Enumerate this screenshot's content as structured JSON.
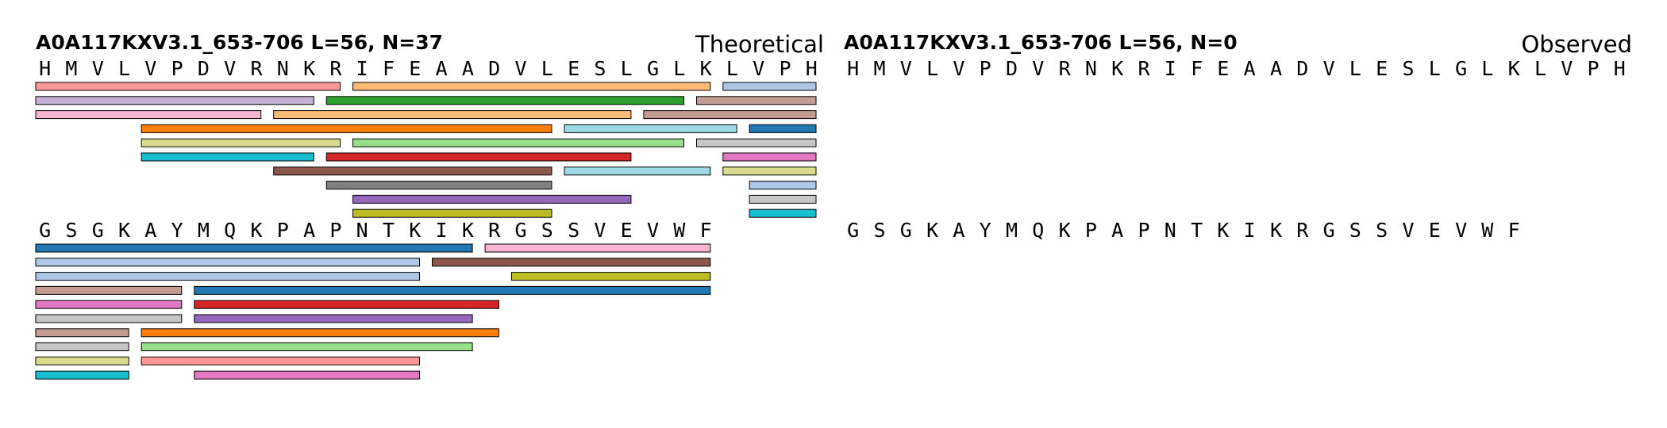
{
  "theme": {
    "palette": [
      "#ff9896",
      "#ffbb78",
      "#aec7e8",
      "#c5b0d5",
      "#2ca02c",
      "#c49c94",
      "#f7b6d2",
      "#ff7f0e",
      "#9edae5",
      "#1f77b4",
      "#dbdb8d",
      "#98df8a",
      "#c7c7c7",
      "#17becf",
      "#d62728",
      "#e377c2",
      "#8c564b",
      "#7f7f7f",
      "#9467bd",
      "#bcbd22"
    ]
  },
  "panels": [
    {
      "title": "A0A117KXV3.1_653-706  L=56, N=37",
      "mode_label": "Theoretical",
      "rows": [
        {
          "sequence": "HMVLVPDVRNKRIFEAADVLESLGLKLVPH",
          "start_residue": 1,
          "peptides": [
            {
              "start": 1,
              "end": 12,
              "track": 0,
              "color": "#ff9896"
            },
            {
              "start": 13,
              "end": 26,
              "track": 0,
              "color": "#ffbb78"
            },
            {
              "start": 27,
              "end": 30,
              "track": 0,
              "color": "#aec7e8"
            },
            {
              "start": 1,
              "end": 11,
              "track": 1,
              "color": "#c5b0d5"
            },
            {
              "start": 12,
              "end": 25,
              "track": 1,
              "color": "#2ca02c"
            },
            {
              "start": 26,
              "end": 30,
              "track": 1,
              "color": "#c49c94"
            },
            {
              "start": 1,
              "end": 9,
              "track": 2,
              "color": "#f7b6d2"
            },
            {
              "start": 10,
              "end": 23,
              "track": 2,
              "color": "#ffbb78"
            },
            {
              "start": 24,
              "end": 30,
              "track": 2,
              "color": "#c49c94"
            },
            {
              "start": 5,
              "end": 20,
              "track": 3,
              "color": "#ff7f0e"
            },
            {
              "start": 21,
              "end": 27,
              "track": 3,
              "color": "#9edae5"
            },
            {
              "start": 28,
              "end": 30,
              "track": 3,
              "color": "#1f77b4"
            },
            {
              "start": 5,
              "end": 12,
              "track": 4,
              "color": "#dbdb8d"
            },
            {
              "start": 13,
              "end": 25,
              "track": 4,
              "color": "#98df8a"
            },
            {
              "start": 26,
              "end": 30,
              "track": 4,
              "color": "#c7c7c7"
            },
            {
              "start": 5,
              "end": 11,
              "track": 5,
              "color": "#17becf"
            },
            {
              "start": 12,
              "end": 23,
              "track": 5,
              "color": "#d62728"
            },
            {
              "start": 27,
              "end": 30,
              "track": 5,
              "color": "#e377c2"
            },
            {
              "start": 10,
              "end": 20,
              "track": 6,
              "color": "#8c564b"
            },
            {
              "start": 21,
              "end": 26,
              "track": 6,
              "color": "#9edae5"
            },
            {
              "start": 27,
              "end": 30,
              "track": 6,
              "color": "#dbdb8d"
            },
            {
              "start": 12,
              "end": 20,
              "track": 7,
              "color": "#7f7f7f"
            },
            {
              "start": 28,
              "end": 30,
              "track": 7,
              "color": "#aec7e8"
            },
            {
              "start": 13,
              "end": 23,
              "track": 8,
              "color": "#9467bd"
            },
            {
              "start": 28,
              "end": 30,
              "track": 8,
              "color": "#c7c7c7"
            },
            {
              "start": 13,
              "end": 20,
              "track": 9,
              "color": "#bcbd22"
            },
            {
              "start": 28,
              "end": 30,
              "track": 9,
              "color": "#17becf"
            }
          ]
        },
        {
          "sequence": "GSGKAYMQKPAPNTKIKRGSSVEVWF",
          "start_residue": 31,
          "peptides": [
            {
              "start": 31,
              "end": 47,
              "track": 0,
              "color": "#1f77b4"
            },
            {
              "start": 48,
              "end": 56,
              "track": 0,
              "color": "#f7b6d2"
            },
            {
              "start": 31,
              "end": 45,
              "track": 1,
              "color": "#aec7e8"
            },
            {
              "start": 46,
              "end": 56,
              "track": 1,
              "color": "#8c564b"
            },
            {
              "start": 31,
              "end": 45,
              "track": 2,
              "color": "#aec7e8"
            },
            {
              "start": 49,
              "end": 56,
              "track": 2,
              "color": "#bcbd22"
            },
            {
              "start": 31,
              "end": 36,
              "track": 3,
              "color": "#c49c94"
            },
            {
              "start": 37,
              "end": 56,
              "track": 3,
              "color": "#1f77b4"
            },
            {
              "start": 31,
              "end": 36,
              "track": 4,
              "color": "#e377c2"
            },
            {
              "start": 37,
              "end": 48,
              "track": 4,
              "color": "#d62728"
            },
            {
              "start": 31,
              "end": 36,
              "track": 5,
              "color": "#c7c7c7"
            },
            {
              "start": 37,
              "end": 47,
              "track": 5,
              "color": "#9467bd"
            },
            {
              "start": 31,
              "end": 34,
              "track": 6,
              "color": "#c49c94"
            },
            {
              "start": 35,
              "end": 48,
              "track": 6,
              "color": "#ff7f0e"
            },
            {
              "start": 31,
              "end": 34,
              "track": 7,
              "color": "#c7c7c7"
            },
            {
              "start": 35,
              "end": 47,
              "track": 7,
              "color": "#98df8a"
            },
            {
              "start": 31,
              "end": 34,
              "track": 8,
              "color": "#dbdb8d"
            },
            {
              "start": 35,
              "end": 45,
              "track": 8,
              "color": "#ff9896"
            },
            {
              "start": 31,
              "end": 34,
              "track": 9,
              "color": "#17becf"
            },
            {
              "start": 37,
              "end": 45,
              "track": 9,
              "color": "#e377c2"
            }
          ]
        }
      ]
    },
    {
      "title": "A0A117KXV3.1_653-706  L=56, N=0",
      "mode_label": "Observed",
      "rows": [
        {
          "sequence": "HMVLVPDVRNKRIFEAADVLESLGLKLVPH",
          "start_residue": 1,
          "peptides": []
        },
        {
          "sequence": "GSGKAYMQKPAPNTKIKRGSSVEVWF",
          "start_residue": 31,
          "peptides": []
        }
      ]
    }
  ]
}
